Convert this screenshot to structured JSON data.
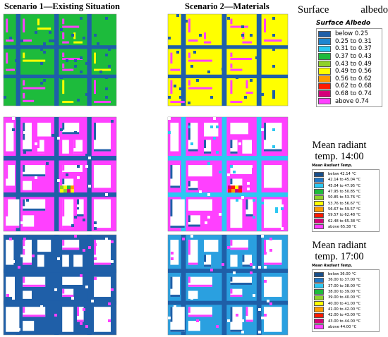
{
  "columns": [
    "Scenario 1—Existing Situation",
    "Scenario 2—Materials"
  ],
  "legends": [
    {
      "title": "Surface albedo",
      "subtitle": "Surface Albedo",
      "items": [
        {
          "label": "below 0.25",
          "color": "#1f5fa8"
        },
        {
          "label": "0.25 to 0.31",
          "color": "#1f86d0"
        },
        {
          "label": "0.31 to 0.37",
          "color": "#2cc8f2"
        },
        {
          "label": "0.37 to 0.43",
          "color": "#1dbb3c"
        },
        {
          "label": "0.43 to 0.49",
          "color": "#8fd12a"
        },
        {
          "label": "0.49 to 0.56",
          "color": "#ffff00"
        },
        {
          "label": "0.56 to 0.62",
          "color": "#ff9a00"
        },
        {
          "label": "0.62 to 0.68",
          "color": "#ff1a00"
        },
        {
          "label": "0.68 to 0.74",
          "color": "#d4007a"
        },
        {
          "label": "above 0.74",
          "color": "#ff40ff"
        }
      ]
    },
    {
      "title": "Mean radiant temp. 14:00",
      "subtitle": "Mean Radiant Temp.",
      "items": [
        {
          "label": "below 42.14 °C",
          "color": "#1a4f8a"
        },
        {
          "label": "42.14 to 45.04 °C",
          "color": "#1f78c8"
        },
        {
          "label": "45.04 to 47.95 °C",
          "color": "#2cc8f2"
        },
        {
          "label": "47.95 to 50.85 °C",
          "color": "#1dbb3c"
        },
        {
          "label": "50.85 to 53.76 °C",
          "color": "#8fd12a"
        },
        {
          "label": "53.76 to 56.67 °C",
          "color": "#ffff00"
        },
        {
          "label": "56.67 to 59.57 °C",
          "color": "#ff9a00"
        },
        {
          "label": "59.57 to 62.48 °C",
          "color": "#ff1a00"
        },
        {
          "label": "62.48 to 65.38 °C",
          "color": "#d4007a"
        },
        {
          "label": "above 65.38 °C",
          "color": "#ff40ff"
        }
      ]
    },
    {
      "title": "Mean radiant temp. 17:00",
      "subtitle": "Mean Radiant Temp.",
      "items": [
        {
          "label": "below 36.00 °C",
          "color": "#1a4f8a"
        },
        {
          "label": "36.00 to 37.00 °C",
          "color": "#1f78c8"
        },
        {
          "label": "37.00 to 38.00 °C",
          "color": "#2cc8f2"
        },
        {
          "label": "38.00 to 39.00 °C",
          "color": "#1dbb3c"
        },
        {
          "label": "39.00 to 40.00 °C",
          "color": "#8fd12a"
        },
        {
          "label": "40.00 to 41.00 °C",
          "color": "#ffff00"
        },
        {
          "label": "41.00 to 42.00 °C",
          "color": "#ff9a00"
        },
        {
          "label": "42.00 to 43.00 °C",
          "color": "#ff1a00"
        },
        {
          "label": "43.00 to 44.00 °C",
          "color": "#d4007a"
        },
        {
          "label": "above 44.00 °C",
          "color": "#ff40ff"
        }
      ]
    }
  ]
}
